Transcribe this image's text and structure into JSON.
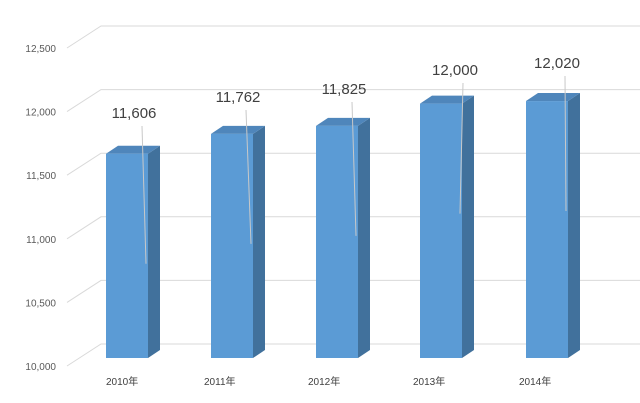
{
  "chart_data": {
    "type": "bar",
    "categories": [
      "2010年",
      "2011年",
      "2012年",
      "2013年",
      "2014年"
    ],
    "values": [
      11606,
      11762,
      11825,
      12000,
      12020
    ],
    "value_labels": [
      "11,606",
      "11,762",
      "11,825",
      "12,000",
      "12,020"
    ],
    "title": "",
    "xlabel": "",
    "ylabel": "",
    "ylim": [
      10000,
      12500
    ],
    "yticks": [
      10000,
      10500,
      11000,
      11500,
      12000,
      12500
    ],
    "ytick_labels": [
      "10,000",
      "10,500",
      "11,000",
      "11,500",
      "12,000",
      "12,500"
    ],
    "grid": true,
    "three_d": true,
    "colors": {
      "bar_front": "#5b9bd5",
      "bar_side": "#41719c",
      "bar_top": "#4f86bb",
      "grid": "#d9d9d9",
      "leader": "#c8c8c8"
    }
  }
}
